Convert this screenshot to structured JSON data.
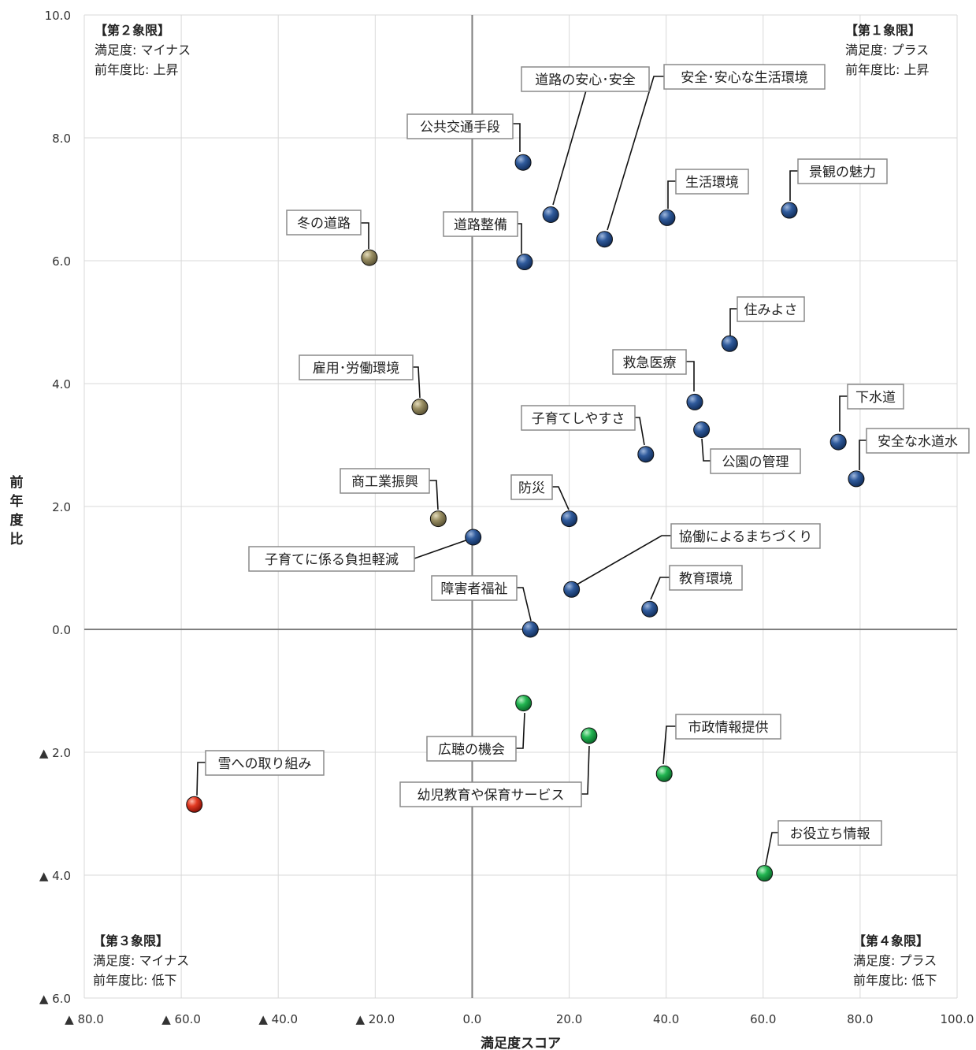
{
  "chart_data": {
    "type": "scatter",
    "xlabel": "満足度スコア",
    "ylabel": "前年度比",
    "xlim": [
      -80,
      100
    ],
    "ylim": [
      -6,
      10
    ],
    "grid": true,
    "x_ticks": [
      {
        "value": -80,
        "label": "▲ 80.0"
      },
      {
        "value": -60,
        "label": "▲ 60.0"
      },
      {
        "value": -40,
        "label": "▲ 40.0"
      },
      {
        "value": -20,
        "label": "▲ 20.0"
      },
      {
        "value": 0,
        "label": "0.0"
      },
      {
        "value": 20,
        "label": "20.0"
      },
      {
        "value": 40,
        "label": "40.0"
      },
      {
        "value": 60,
        "label": "60.0"
      },
      {
        "value": 80,
        "label": "80.0"
      },
      {
        "value": 100,
        "label": "100.0"
      }
    ],
    "y_ticks": [
      {
        "value": 10,
        "label": "10.0"
      },
      {
        "value": 8,
        "label": "8.0"
      },
      {
        "value": 6,
        "label": "6.0"
      },
      {
        "value": 4,
        "label": "4.0"
      },
      {
        "value": 2,
        "label": "2.0"
      },
      {
        "value": 0,
        "label": "0.0"
      },
      {
        "value": -2,
        "label": "▲ 2.0"
      },
      {
        "value": -4,
        "label": "▲ 4.0"
      },
      {
        "value": -6,
        "label": "▲ 6.0"
      }
    ],
    "colors": {
      "q1": "#1f4e8c",
      "q2": "#8a805a",
      "q3": "#d7261b",
      "q4": "#1faa4a",
      "grid": "#d9d9d9",
      "axis": "#7f7f7f"
    },
    "quadrant_notes": [
      {
        "position": "top-left",
        "lines": [
          "【第２象限】",
          "満足度: マイナス",
          "前年度比: 上昇"
        ]
      },
      {
        "position": "top-right",
        "lines": [
          "【第１象限】",
          "満足度: プラス",
          "前年度比: 上昇"
        ]
      },
      {
        "position": "bottom-left",
        "lines": [
          "【第３象限】",
          "満足度: マイナス",
          "前年度比: 低下"
        ]
      },
      {
        "position": "bottom-right",
        "lines": [
          "【第４象限】",
          "満足度: プラス",
          "前年度比: 低下"
        ]
      }
    ],
    "points": [
      {
        "label": "公共交通手段",
        "x": 10.5,
        "y": 7.6,
        "group": "q1"
      },
      {
        "label": "道路の安心･安全",
        "x": 16.2,
        "y": 6.75,
        "group": "q1"
      },
      {
        "label": "安全･安心な生活環境",
        "x": 27.3,
        "y": 6.35,
        "group": "q1"
      },
      {
        "label": "生活環境",
        "x": 40.2,
        "y": 6.7,
        "group": "q1"
      },
      {
        "label": "景観の魅力",
        "x": 65.4,
        "y": 6.82,
        "group": "q1"
      },
      {
        "label": "道路整備",
        "x": 10.8,
        "y": 5.98,
        "group": "q1"
      },
      {
        "label": "住みよさ",
        "x": 53.1,
        "y": 4.65,
        "group": "q1"
      },
      {
        "label": "救急医療",
        "x": 45.9,
        "y": 3.7,
        "group": "q1"
      },
      {
        "label": "子育てしやすさ",
        "x": 35.8,
        "y": 2.85,
        "group": "q1"
      },
      {
        "label": "公園の管理",
        "x": 47.3,
        "y": 3.25,
        "group": "q1"
      },
      {
        "label": "下水道",
        "x": 75.5,
        "y": 3.05,
        "group": "q1"
      },
      {
        "label": "安全な水道水",
        "x": 79.2,
        "y": 2.45,
        "group": "q1"
      },
      {
        "label": "防災",
        "x": 20.0,
        "y": 1.8,
        "group": "q1"
      },
      {
        "label": "子育てに係る負担軽減",
        "x": 0.2,
        "y": 1.5,
        "group": "q1"
      },
      {
        "label": "協働によるまちづくり",
        "x": 20.5,
        "y": 0.65,
        "group": "q1"
      },
      {
        "label": "教育環境",
        "x": 36.6,
        "y": 0.33,
        "group": "q1"
      },
      {
        "label": "障害者福祉",
        "x": 12.0,
        "y": 0.0,
        "group": "q1"
      },
      {
        "label": "冬の道路",
        "x": -21.2,
        "y": 6.05,
        "group": "q2"
      },
      {
        "label": "雇用･労働環境",
        "x": -10.8,
        "y": 3.62,
        "group": "q2"
      },
      {
        "label": "商工業振興",
        "x": -7.0,
        "y": 1.8,
        "group": "q2"
      },
      {
        "label": "広聴の機会",
        "x": 10.6,
        "y": -1.2,
        "group": "q4"
      },
      {
        "label": "幼児教育や保育サービス",
        "x": 24.1,
        "y": -1.73,
        "group": "q4"
      },
      {
        "label": "市政情報提供",
        "x": 39.6,
        "y": -2.35,
        "group": "q4"
      },
      {
        "label": "お役立ち情報",
        "x": 60.3,
        "y": -3.97,
        "group": "q4"
      },
      {
        "label": "雪への取り組み",
        "x": -57.3,
        "y": -2.85,
        "group": "q3"
      }
    ]
  }
}
